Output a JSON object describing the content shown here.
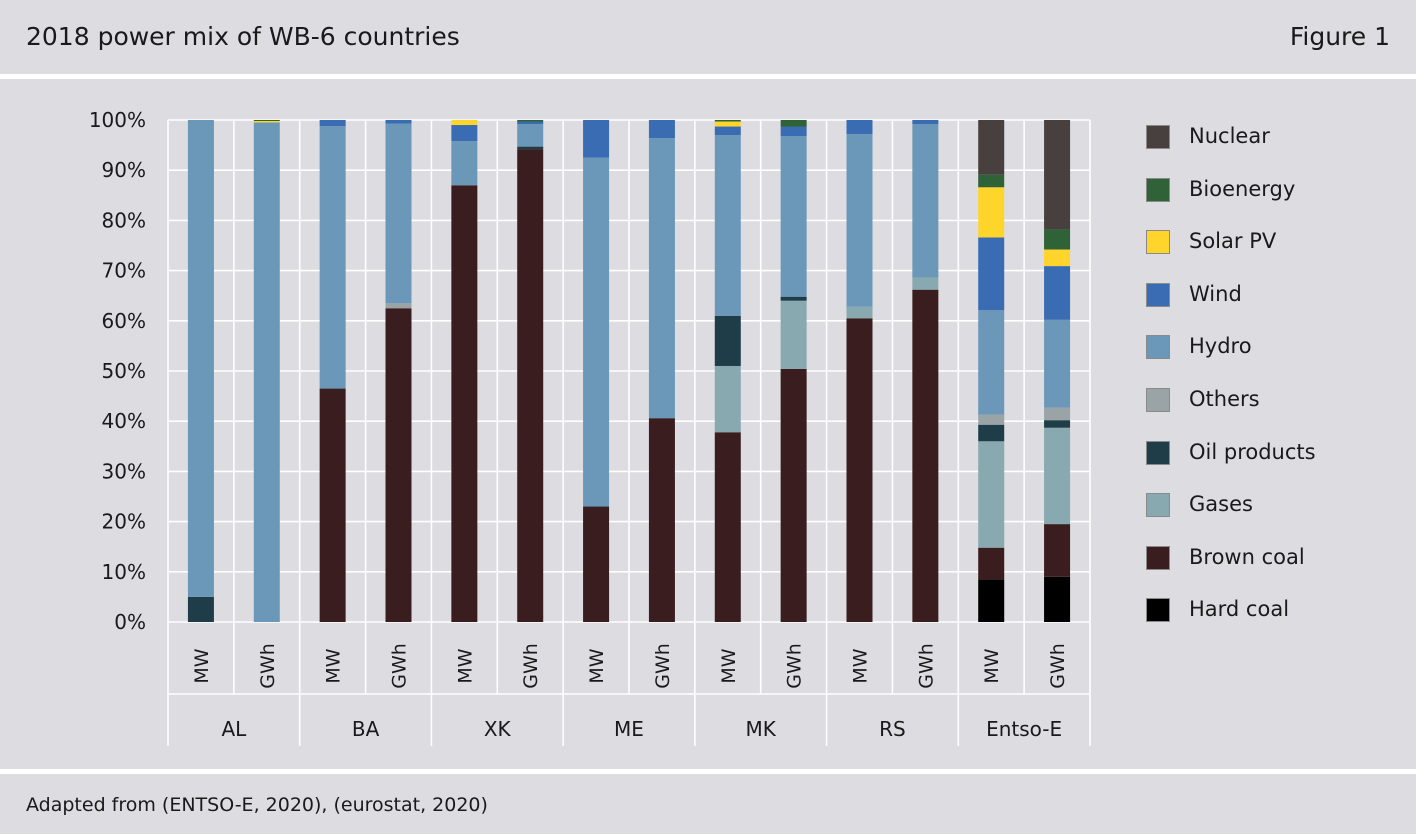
{
  "header": {
    "title": "2018 power mix of WB-6 countries",
    "figure_label": "Figure 1"
  },
  "footer": {
    "source": "Adapted from (ENTSO-E, 2020), (eurostat, 2020)"
  },
  "colors": {
    "Hard coal": "#000000",
    "Brown coal": "#3a1e1f",
    "Gases": "#88a9b0",
    "Oil products": "#1f3d48",
    "Others": "#9aa3a5",
    "Hydro": "#6b97b9",
    "Wind": "#3a6cb3",
    "Solar PV": "#ffd52b",
    "Bioenergy": "#2f6237",
    "Nuclear": "#47403e"
  },
  "chart_data": {
    "type": "bar",
    "stacked": true,
    "percent": true,
    "ylim": [
      0,
      100
    ],
    "yticks": [
      "0%",
      "10%",
      "20%",
      "30%",
      "40%",
      "50%",
      "60%",
      "70%",
      "80%",
      "90%",
      "100%"
    ],
    "groups": [
      "AL",
      "BA",
      "XK",
      "ME",
      "MK",
      "RS",
      "Entso-E"
    ],
    "units": [
      "MW",
      "GWh"
    ],
    "legend_placement": "right",
    "legend": [
      "Nuclear",
      "Bioenergy",
      "Solar PV",
      "Wind",
      "Hydro",
      "Others",
      "Oil products",
      "Gases",
      "Brown coal",
      "Hard coal"
    ],
    "stack_order": [
      "Hard coal",
      "Brown coal",
      "Gases",
      "Oil products",
      "Others",
      "Hydro",
      "Wind",
      "Solar PV",
      "Bioenergy",
      "Nuclear"
    ],
    "bars": [
      {
        "group": "AL",
        "unit": "MW",
        "values": {
          "Oil products": 5,
          "Hydro": 95
        }
      },
      {
        "group": "AL",
        "unit": "GWh",
        "values": {
          "Hydro": 99.5,
          "Solar PV": 0.3,
          "Bioenergy": 0.2
        }
      },
      {
        "group": "BA",
        "unit": "MW",
        "values": {
          "Brown coal": 46.5,
          "Hydro": 52.3,
          "Wind": 1.2
        }
      },
      {
        "group": "BA",
        "unit": "GWh",
        "values": {
          "Brown coal": 62.5,
          "Others": 1,
          "Hydro": 35.8,
          "Wind": 0.7
        }
      },
      {
        "group": "XK",
        "unit": "MW",
        "values": {
          "Brown coal": 87,
          "Hydro": 8.8,
          "Wind": 3.2,
          "Solar PV": 1
        }
      },
      {
        "group": "XK",
        "unit": "GWh",
        "values": {
          "Brown coal": 94.2,
          "Oil products": 0.5,
          "Hydro": 4.5,
          "Wind": 0.5,
          "Bioenergy": 0.3
        }
      },
      {
        "group": "ME",
        "unit": "MW",
        "values": {
          "Brown coal": 23,
          "Hydro": 69.5,
          "Wind": 7.5
        }
      },
      {
        "group": "ME",
        "unit": "GWh",
        "values": {
          "Brown coal": 40.6,
          "Hydro": 55.8,
          "Wind": 3.6
        }
      },
      {
        "group": "MK",
        "unit": "MW",
        "values": {
          "Brown coal": 37.8,
          "Gases": 13.2,
          "Oil products": 10,
          "Hydro": 36,
          "Wind": 1.7,
          "Solar PV": 1,
          "Bioenergy": 0.3
        }
      },
      {
        "group": "MK",
        "unit": "GWh",
        "values": {
          "Brown coal": 50.4,
          "Gases": 13.6,
          "Oil products": 0.8,
          "Hydro": 32,
          "Wind": 1.9,
          "Bioenergy": 1.3
        }
      },
      {
        "group": "RS",
        "unit": "MW",
        "values": {
          "Brown coal": 60.5,
          "Gases": 2.3,
          "Hydro": 34.4,
          "Wind": 2.8
        }
      },
      {
        "group": "RS",
        "unit": "GWh",
        "values": {
          "Brown coal": 66.2,
          "Gases": 2.4,
          "Hydro": 30.6,
          "Wind": 0.8
        }
      },
      {
        "group": "Entso-E",
        "unit": "MW",
        "values": {
          "Hard coal": 8.5,
          "Brown coal": 6.3,
          "Gases": 21.2,
          "Oil products": 3.3,
          "Others": 2,
          "Hydro": 20.8,
          "Wind": 14.5,
          "Solar PV": 10,
          "Bioenergy": 2.5,
          "Nuclear": 10.9
        }
      },
      {
        "group": "Entso-E",
        "unit": "GWh",
        "values": {
          "Hard coal": 9,
          "Brown coal": 10.5,
          "Gases": 19.2,
          "Oil products": 1.5,
          "Others": 2.5,
          "Hydro": 17.5,
          "Wind": 10.7,
          "Solar PV": 3.3,
          "Bioenergy": 4,
          "Nuclear": 21.8
        }
      }
    ]
  }
}
